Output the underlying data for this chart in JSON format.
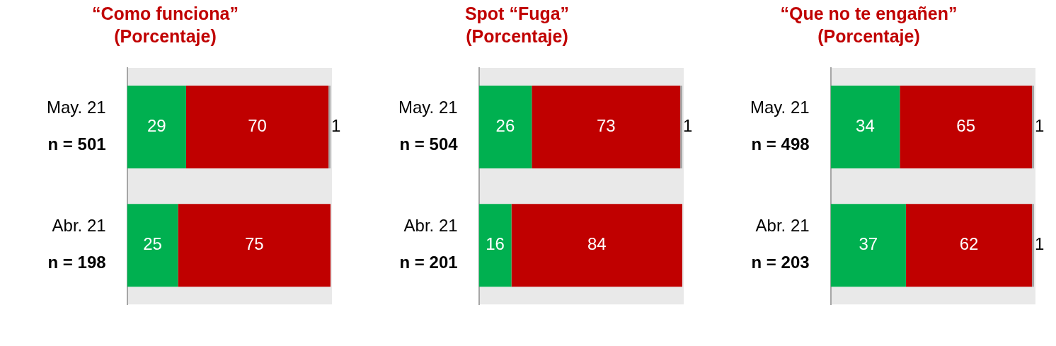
{
  "chart_data": [
    {
      "type": "bar",
      "orientation": "horizontal",
      "stacked": true,
      "title": "“Como funciona”",
      "subtitle": "(Porcentaje)",
      "categories": [
        "May. 21\nn = 501",
        "Abr. 21\nn = 198"
      ],
      "xlim": [
        0,
        100
      ],
      "tick_labels": "y",
      "grid": false,
      "legend": false,
      "data_labels": true,
      "series": [
        {
          "color": "#00b050",
          "values": [
            29,
            25
          ]
        },
        {
          "color": "#c00000",
          "values": [
            70,
            75
          ]
        },
        {
          "color": "#a6a6a6",
          "values": [
            1,
            null
          ]
        }
      ]
    },
    {
      "type": "bar",
      "orientation": "horizontal",
      "stacked": true,
      "title": "Spot “Fuga”",
      "subtitle": "(Porcentaje)",
      "categories": [
        "May. 21\nn = 504",
        "Abr. 21\nn = 201"
      ],
      "xlim": [
        0,
        100
      ],
      "tick_labels": "y",
      "grid": false,
      "legend": false,
      "data_labels": true,
      "series": [
        {
          "color": "#00b050",
          "values": [
            26,
            16
          ]
        },
        {
          "color": "#c00000",
          "values": [
            73,
            84
          ]
        },
        {
          "color": "#a6a6a6",
          "values": [
            1,
            null
          ]
        }
      ]
    },
    {
      "type": "bar",
      "orientation": "horizontal",
      "stacked": true,
      "title": "“Que no te engañen”",
      "subtitle": "(Porcentaje)",
      "categories": [
        "May. 21\nn = 498",
        "Abr. 21\nn = 203"
      ],
      "xlim": [
        0,
        100
      ],
      "tick_labels": "y",
      "grid": false,
      "legend": false,
      "data_labels": true,
      "series": [
        {
          "color": "#00b050",
          "values": [
            34,
            37
          ]
        },
        {
          "color": "#c00000",
          "values": [
            65,
            62
          ]
        },
        {
          "color": "#a6a6a6",
          "values": [
            1,
            1
          ]
        }
      ]
    }
  ]
}
